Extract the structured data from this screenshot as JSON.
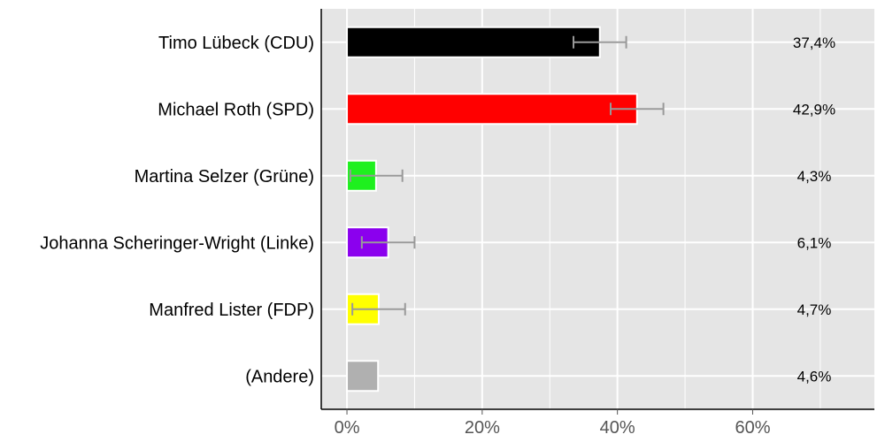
{
  "chart_data": {
    "type": "bar",
    "orientation": "horizontal",
    "categories": [
      "Timo Lübeck (CDU)",
      "Michael Roth (SPD)",
      "Martina Selzer (Grüne)",
      "Johanna Scheringer-Wright (Linke)",
      "Manfred Lister (FDP)",
      "(Andere)"
    ],
    "values": [
      37.4,
      42.9,
      4.3,
      6.1,
      4.7,
      4.6
    ],
    "value_labels": [
      "37,4%",
      "42,9%",
      "4,3%",
      "6,1%",
      "4,7%",
      "4,6%"
    ],
    "error_bars": [
      [
        33.5,
        41.3
      ],
      [
        39.0,
        46.8
      ],
      [
        0.5,
        8.2
      ],
      [
        2.2,
        10.0
      ],
      [
        0.8,
        8.6
      ],
      null
    ],
    "colors": [
      "#000000",
      "#ff0000",
      "#1ef01e",
      "#8b00ee",
      "#ffff00",
      "#b0b0b0"
    ],
    "error_bar_color": "#999999",
    "xlim": [
      -3.8,
      78
    ],
    "xticks": [
      0,
      20,
      40,
      60
    ],
    "xtick_labels": [
      "0%",
      "20%",
      "40%",
      "60%"
    ],
    "grid": true,
    "background_color": "#e5e5e5",
    "title": "",
    "xlabel": "",
    "ylabel": ""
  }
}
